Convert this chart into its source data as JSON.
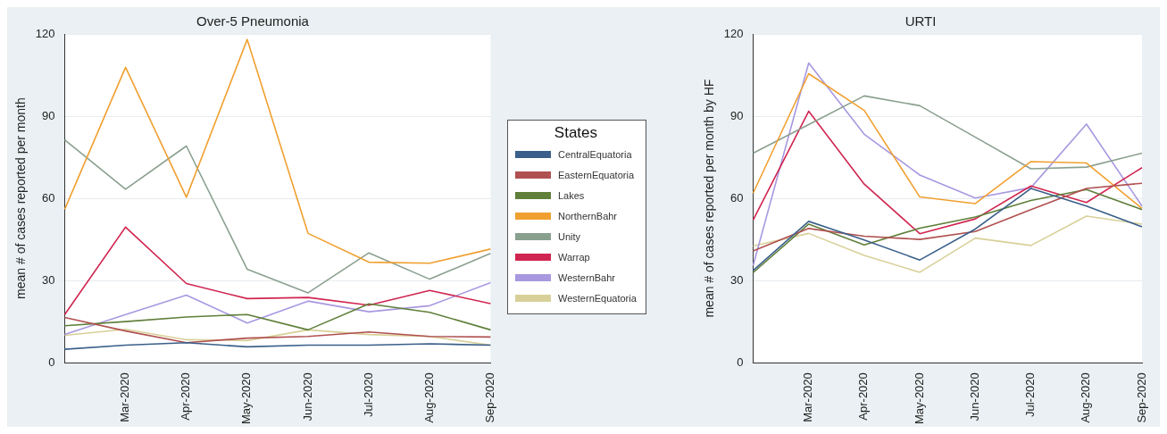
{
  "chart_data": [
    {
      "type": "line",
      "title": "Over-5 Pneumonia",
      "ylabel": "mean # of cases reported per month",
      "legend_title": "States",
      "legend": "right",
      "grid": "y",
      "ylim": [
        0,
        120
      ],
      "yticks": [
        0,
        30,
        60,
        90,
        120
      ],
      "categories": [
        null,
        "Mar-2020",
        "Apr-2020",
        "May-2020",
        "Jun-2020",
        "Jul-2020",
        "Aug-2020",
        "Sep-2020"
      ],
      "series": [
        {
          "name": "CentralEquatoria",
          "color": "#3a5f8a",
          "values": [
            4.9,
            6.4,
            7.3,
            5.8,
            6.4,
            6.4,
            6.9,
            6.4
          ]
        },
        {
          "name": "EasternEquatoria",
          "color": "#b05050",
          "values": [
            16.5,
            11.6,
            7.3,
            9,
            9.6,
            11.2,
            9.6,
            9.4
          ]
        },
        {
          "name": "Lakes",
          "color": "#5f7f3a",
          "values": [
            13.5,
            15,
            16.7,
            17.6,
            12,
            21.5,
            18.4,
            12
          ]
        },
        {
          "name": "NorthernBahr",
          "color": "#f0a030",
          "values": [
            56,
            107.8,
            60.4,
            118,
            47.2,
            36.7,
            36.3,
            41.5
          ]
        },
        {
          "name": "Unity",
          "color": "#8aa08f",
          "values": [
            81.3,
            63.3,
            79.1,
            34.1,
            25.5,
            40.1,
            30.5,
            39.9
          ]
        },
        {
          "name": "Warrap",
          "color": "#d02550",
          "values": [
            17.6,
            49.5,
            28.9,
            23.4,
            23.8,
            21,
            26.4,
            21.6
          ]
        },
        {
          "name": "WesternBahr",
          "color": "#a898e0",
          "values": [
            10.3,
            17.6,
            24.7,
            14.5,
            22.5,
            18.6,
            20.8,
            29.2
          ]
        },
        {
          "name": "WesternEquatoria",
          "color": "#d8d098",
          "values": [
            10,
            12.2,
            8.4,
            8.1,
            12,
            10.3,
            9.6,
            6.4
          ]
        }
      ]
    },
    {
      "type": "line",
      "title": "URTI",
      "ylabel": "mean # of cases reported per month by HF",
      "grid": "y",
      "ylim": [
        0,
        120
      ],
      "yticks": [
        0,
        30,
        60,
        90,
        120
      ],
      "categories": [
        null,
        "Mar-2020",
        "Apr-2020",
        "May-2020",
        "Jun-2020",
        "Jul-2020",
        "Aug-2020",
        "Sep-2020"
      ],
      "series": [
        {
          "color": "#3a5f8a",
          "values": [
            33.7,
            51.6,
            44.8,
            37.5,
            48.8,
            63.6,
            57.2,
            49.6
          ]
        },
        {
          "color": "#b05050",
          "values": [
            40.8,
            49,
            46.2,
            45,
            47.9,
            55.9,
            63.6,
            65.5
          ]
        },
        {
          "color": "#5f7f3a",
          "values": [
            32.9,
            50.6,
            43,
            49.1,
            53.2,
            59.2,
            63.2,
            55.9
          ]
        },
        {
          "color": "#f0a030",
          "values": [
            61.9,
            105.5,
            92.1,
            60.5,
            58.1,
            73.4,
            72.9,
            56.3
          ]
        },
        {
          "color": "#8aa08f",
          "values": [
            76.5,
            86.9,
            97.4,
            93.8,
            82.3,
            70.8,
            71.4,
            76.5
          ]
        },
        {
          "color": "#d02550",
          "values": [
            52.1,
            91.8,
            65.2,
            47.1,
            52.5,
            64.5,
            58.5,
            71.2
          ]
        },
        {
          "color": "#a898e0",
          "values": [
            35.5,
            109.4,
            83.4,
            68.5,
            60.1,
            63.9,
            87.1,
            57.2
          ]
        },
        {
          "color": "#d8d098",
          "values": [
            42.6,
            47.2,
            39.2,
            33,
            45.5,
            42.8,
            53.5,
            50.6
          ]
        }
      ]
    }
  ]
}
